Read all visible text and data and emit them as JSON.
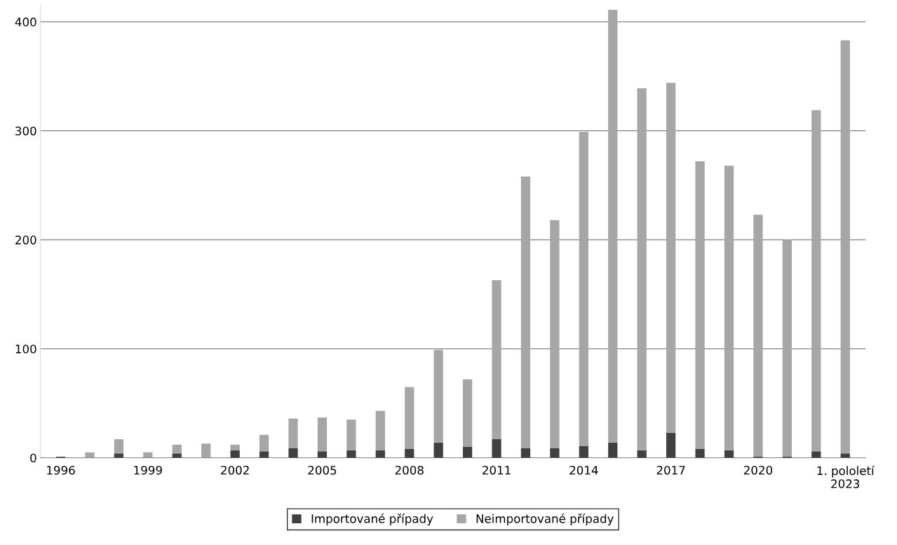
{
  "chart_data": {
    "type": "bar",
    "stacked": true,
    "categories": [
      "1996",
      null,
      null,
      "1999",
      null,
      null,
      "2002",
      null,
      null,
      "2005",
      null,
      null,
      "2008",
      null,
      null,
      "2011",
      null,
      null,
      "2014",
      null,
      null,
      "2017",
      null,
      null,
      "2020",
      null,
      null,
      "1. pololetí\n2023"
    ],
    "series": [
      {
        "name": "Importované případy",
        "color": "#404040",
        "values": [
          1,
          0,
          4,
          0,
          4,
          0,
          7,
          6,
          9,
          6,
          7,
          7,
          8,
          14,
          10,
          17,
          9,
          9,
          11,
          14,
          7,
          23,
          8,
          7,
          1,
          1,
          6,
          4
        ]
      },
      {
        "name": "Neimportované případy",
        "color": "#a6a6a6",
        "values": [
          0,
          5,
          13,
          5,
          8,
          13,
          5,
          15,
          27,
          31,
          28,
          36,
          57,
          85,
          62,
          146,
          249,
          209,
          288,
          397,
          332,
          321,
          264,
          261,
          222,
          199,
          313,
          379
        ]
      }
    ],
    "ylim": [
      0,
      415
    ],
    "yticks": [
      0,
      100,
      200,
      300,
      400
    ],
    "grid": "y",
    "legend": "bottom"
  }
}
